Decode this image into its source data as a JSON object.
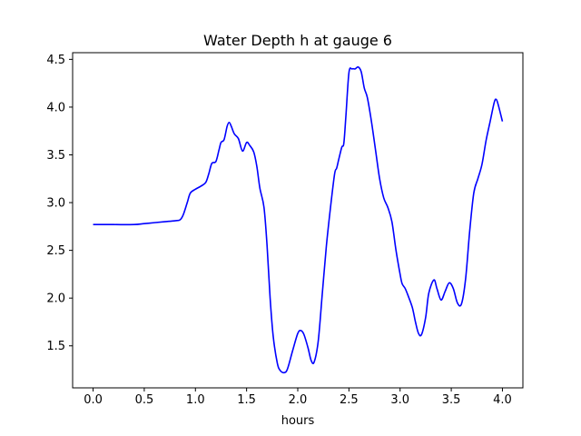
{
  "chart_data": {
    "type": "line",
    "title": "Water Depth h at gauge 6",
    "xlabel": "hours",
    "ylabel": "",
    "xlim": [
      -0.2,
      4.2
    ],
    "ylim": [
      1.06,
      4.57
    ],
    "xticks": [
      0.0,
      0.5,
      1.0,
      1.5,
      2.0,
      2.5,
      3.0,
      3.5,
      4.0
    ],
    "xtick_labels": [
      "0.0",
      "0.5",
      "1.0",
      "1.5",
      "2.0",
      "2.5",
      "3.0",
      "3.5",
      "4.0"
    ],
    "yticks": [
      1.5,
      2.0,
      2.5,
      3.0,
      3.5,
      4.0,
      4.5
    ],
    "ytick_labels": [
      "1.5",
      "2.0",
      "2.5",
      "3.0",
      "3.5",
      "4.0",
      "4.5"
    ],
    "grid": false,
    "legend": "none",
    "series": [
      {
        "color": "#0000ff",
        "x": [
          0.0,
          0.2,
          0.4,
          0.5,
          0.6,
          0.7,
          0.8,
          0.85,
          0.88,
          0.92,
          0.95,
          1.0,
          1.05,
          1.1,
          1.13,
          1.16,
          1.2,
          1.23,
          1.25,
          1.28,
          1.31,
          1.33,
          1.35,
          1.38,
          1.42,
          1.46,
          1.5,
          1.53,
          1.57,
          1.6,
          1.63,
          1.67,
          1.7,
          1.73,
          1.76,
          1.8,
          1.83,
          1.87,
          1.9,
          1.95,
          2.0,
          2.03,
          2.06,
          2.1,
          2.13,
          2.16,
          2.2,
          2.24,
          2.28,
          2.32,
          2.36,
          2.38,
          2.4,
          2.43,
          2.45,
          2.47,
          2.5,
          2.53,
          2.56,
          2.59,
          2.62,
          2.65,
          2.68,
          2.72,
          2.76,
          2.8,
          2.84,
          2.88,
          2.92,
          2.96,
          3.0,
          3.02,
          3.05,
          3.08,
          3.12,
          3.15,
          3.18,
          3.21,
          3.25,
          3.28,
          3.33,
          3.36,
          3.4,
          3.44,
          3.48,
          3.52,
          3.56,
          3.6,
          3.64,
          3.68,
          3.72,
          3.76,
          3.8,
          3.84,
          3.88,
          3.92,
          3.94,
          3.96,
          4.0
        ],
        "y": [
          2.77,
          2.77,
          2.77,
          2.78,
          2.79,
          2.8,
          2.81,
          2.82,
          2.87,
          3.0,
          3.1,
          3.14,
          3.17,
          3.21,
          3.3,
          3.41,
          3.43,
          3.55,
          3.63,
          3.66,
          3.8,
          3.84,
          3.8,
          3.72,
          3.67,
          3.54,
          3.63,
          3.6,
          3.53,
          3.38,
          3.15,
          2.95,
          2.55,
          2.0,
          1.6,
          1.32,
          1.24,
          1.22,
          1.26,
          1.45,
          1.63,
          1.66,
          1.62,
          1.48,
          1.35,
          1.33,
          1.55,
          2.05,
          2.55,
          2.95,
          3.3,
          3.36,
          3.45,
          3.58,
          3.62,
          3.9,
          4.36,
          4.4,
          4.4,
          4.42,
          4.37,
          4.2,
          4.1,
          3.85,
          3.55,
          3.25,
          3.05,
          2.95,
          2.8,
          2.5,
          2.25,
          2.15,
          2.1,
          2.02,
          1.9,
          1.75,
          1.63,
          1.62,
          1.8,
          2.05,
          2.19,
          2.1,
          1.98,
          2.07,
          2.16,
          2.1,
          1.95,
          1.94,
          2.2,
          2.7,
          3.1,
          3.25,
          3.4,
          3.65,
          3.85,
          4.05,
          4.08,
          4.02,
          3.85
        ]
      }
    ]
  }
}
